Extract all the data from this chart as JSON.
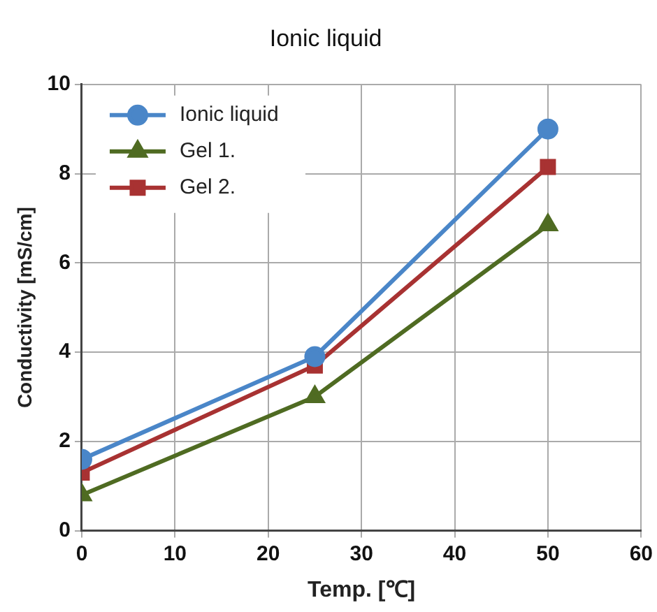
{
  "chart_data": {
    "type": "line",
    "title": "Ionic liquid",
    "xlabel": "Temp. [℃]",
    "ylabel": "Conductivity [mS/cm]",
    "x": [
      0,
      25,
      50
    ],
    "series": [
      {
        "name": "Ionic liquid",
        "color": "#4a86c8",
        "values": [
          1.6,
          3.9,
          9.0
        ],
        "marker": "circle"
      },
      {
        "name": "Gel 1.",
        "color": "#4f6b22",
        "values": [
          0.8,
          3.0,
          6.85
        ],
        "marker": "triangle"
      },
      {
        "name": "Gel 2.",
        "color": "#a83232",
        "values": [
          1.3,
          3.7,
          8.15
        ],
        "marker": "square"
      }
    ],
    "xlim": [
      0,
      60
    ],
    "xticks": [
      0,
      10,
      20,
      30,
      40,
      50,
      60
    ],
    "ylim": [
      0,
      10
    ],
    "yticks": [
      0,
      2,
      4,
      6,
      8,
      10
    ],
    "grid": true,
    "legend": "top left",
    "line_style": "solid"
  }
}
